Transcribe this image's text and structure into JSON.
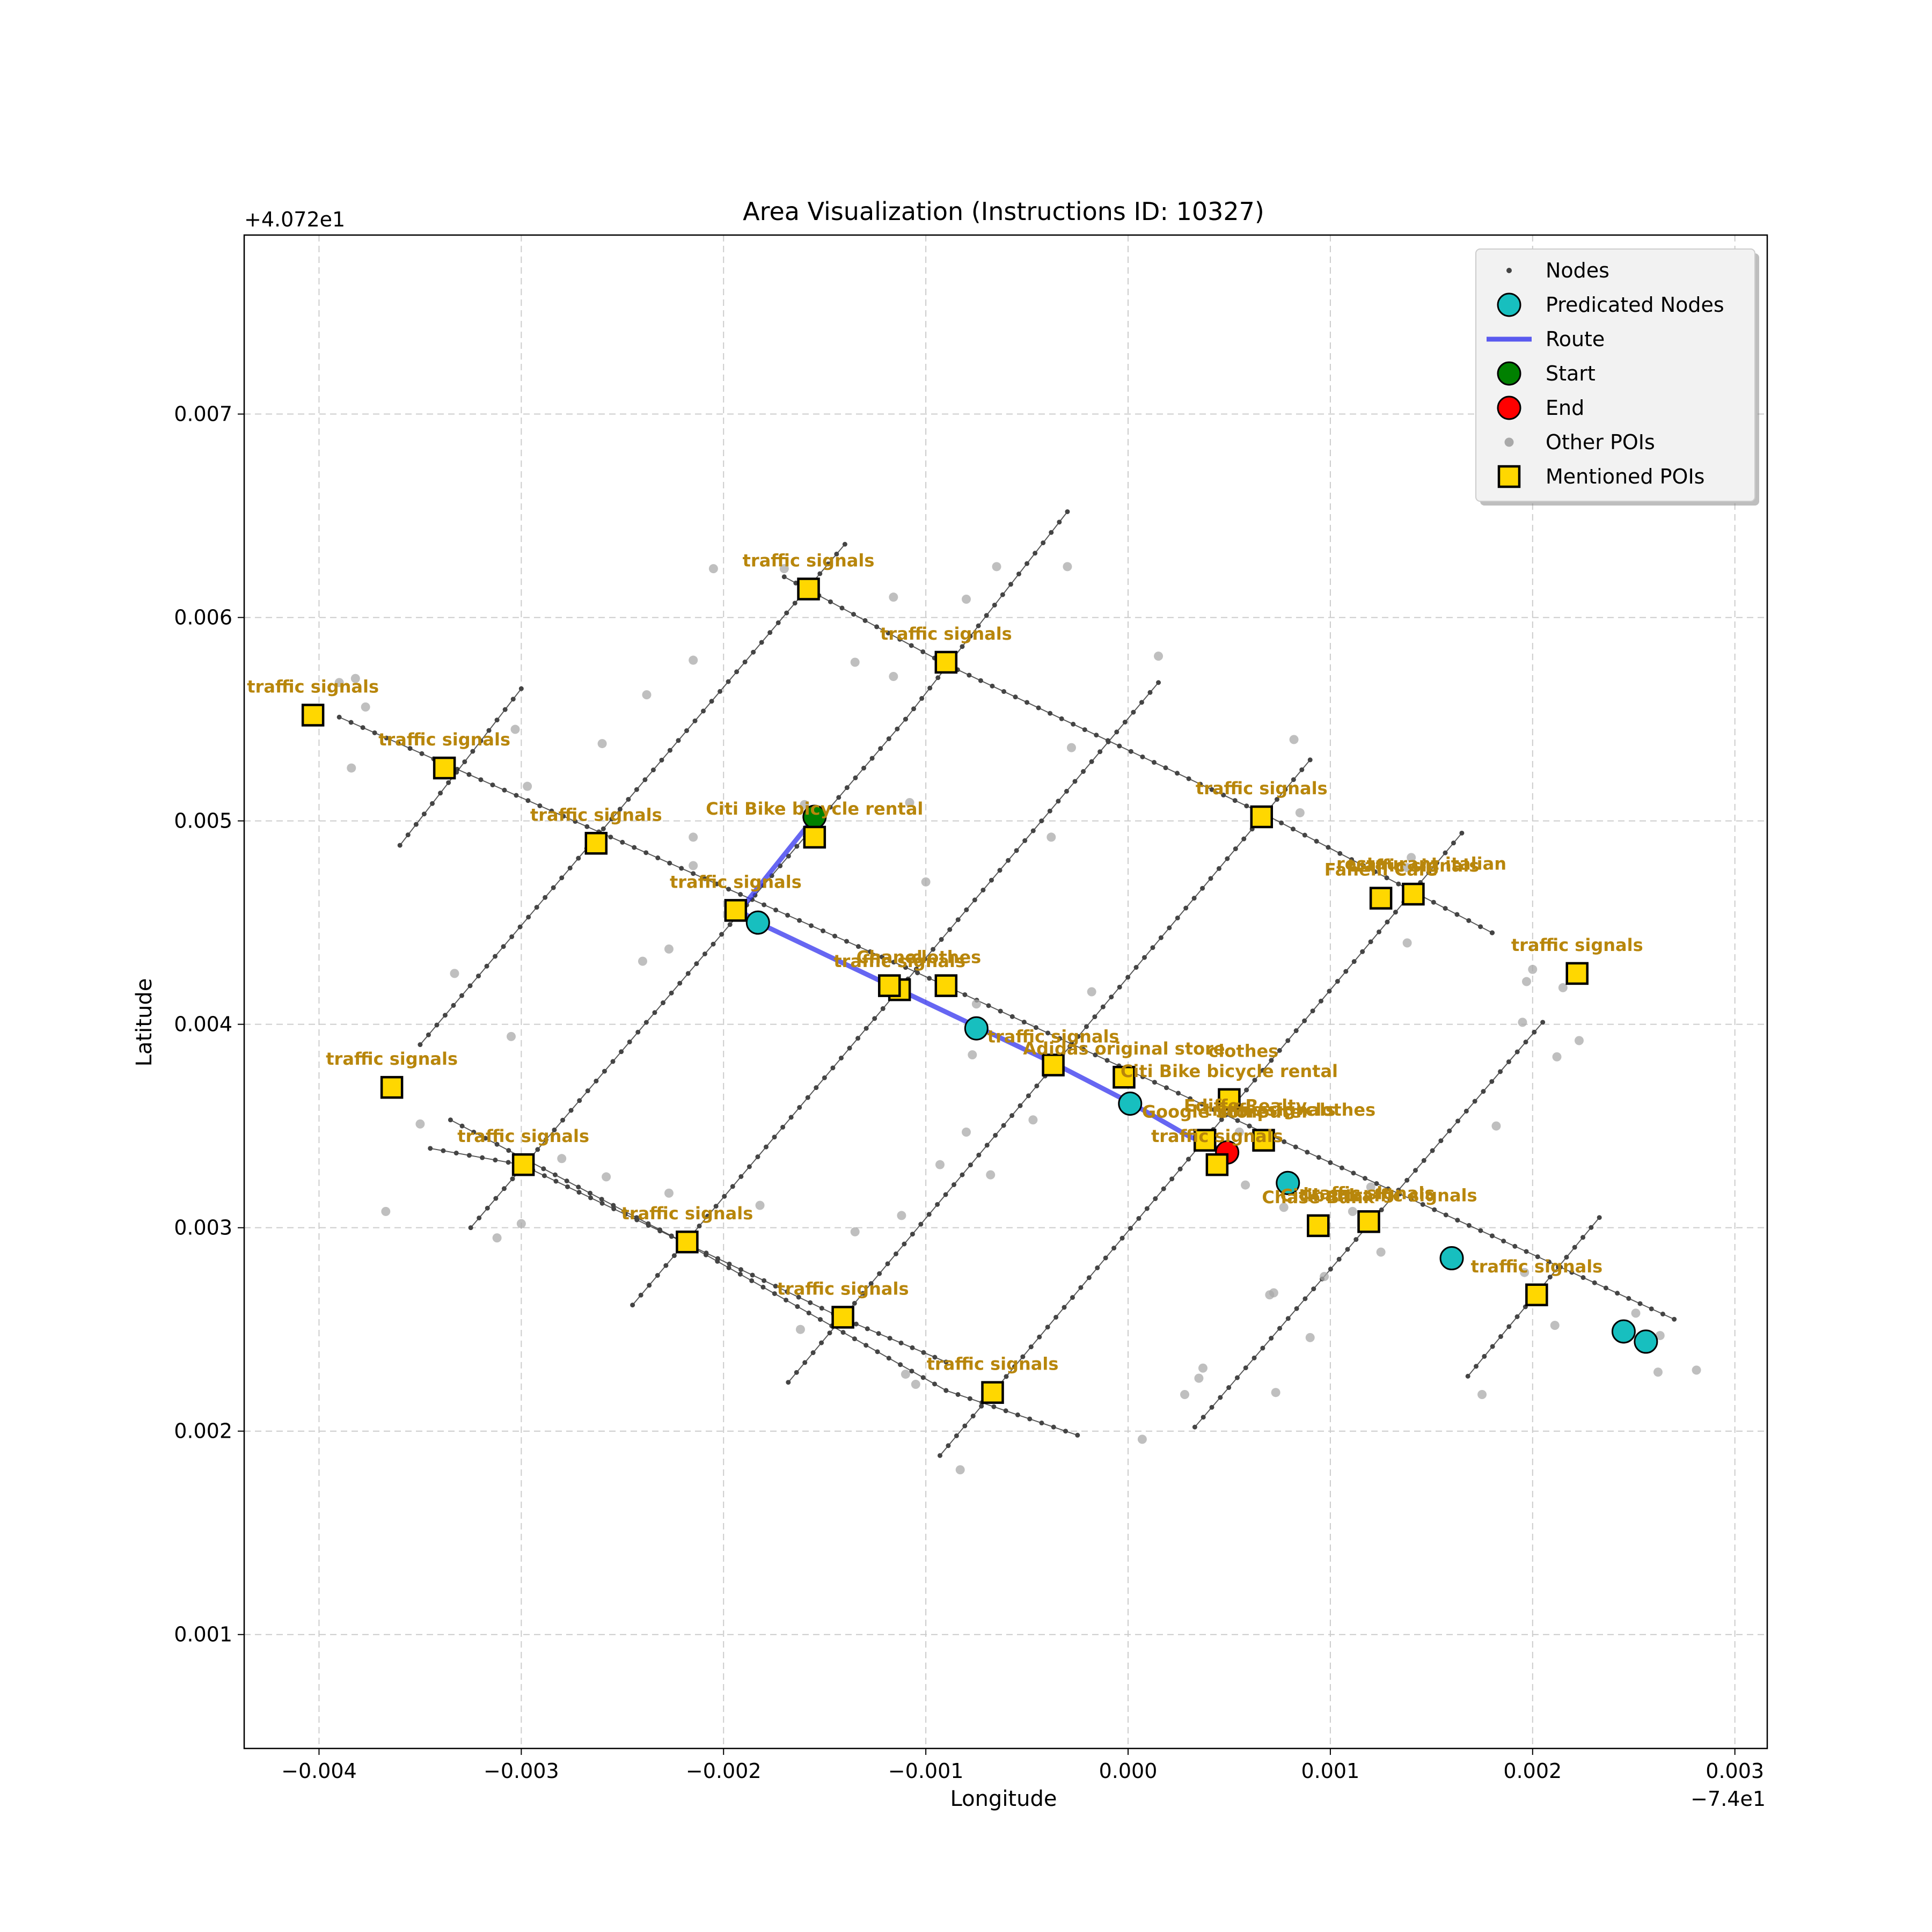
{
  "chart_data": {
    "type": "scatter",
    "title": "Area Visualization (Instructions ID: 10327)",
    "xlabel": "Longitude",
    "ylabel": "Latitude",
    "x_offset_label": "−7.4e1",
    "y_offset_label": "+4.072e1",
    "xlim": [
      -0.00437,
      0.00316
    ],
    "ylim": [
      0.00044,
      0.00788
    ],
    "x_ticks": [
      -0.004,
      -0.003,
      -0.002,
      -0.001,
      0.0,
      0.001,
      0.002,
      0.003
    ],
    "x_tick_labels": [
      "−0.004",
      "−0.003",
      "−0.002",
      "−0.001",
      "0.000",
      "0.001",
      "0.002",
      "0.003"
    ],
    "y_ticks": [
      0.001,
      0.002,
      0.003,
      0.004,
      0.005,
      0.006,
      0.007
    ],
    "y_tick_labels": [
      "0.001",
      "0.002",
      "0.003",
      "0.004",
      "0.005",
      "0.006",
      "0.007"
    ],
    "grid": true,
    "legend_position": "top-right",
    "colors": {
      "nodes": "#444444",
      "edges": "#222222",
      "predicated": "#17bfbf",
      "route": "#3333ee",
      "start": "#008000",
      "end": "#ff0000",
      "other_poi": "#a9a9a9",
      "mentioned_poi": "#ffd700",
      "poi_label": "#b8860b",
      "grid": "#cccccc"
    },
    "legend": [
      {
        "label": "Nodes",
        "marker": "small-dot"
      },
      {
        "label": "Predicated Nodes",
        "marker": "cyan-circle"
      },
      {
        "label": "Route",
        "marker": "blue-line"
      },
      {
        "label": "Start",
        "marker": "green-circle"
      },
      {
        "label": "End",
        "marker": "red-circle"
      },
      {
        "label": "Other POIs",
        "marker": "grey-dot"
      },
      {
        "label": "Mentioned POIs",
        "marker": "yellow-square"
      }
    ],
    "streets": [
      [
        [
          -0.0039,
          0.00551
        ],
        [
          -0.0011,
          0.00428
        ],
        [
          0.0006,
          0.0035
        ],
        [
          0.0018,
          0.00296
        ],
        [
          0.0027,
          0.00255
        ]
      ],
      [
        [
          -0.0017,
          0.0062
        ],
        [
          -0.0009,
          0.00577
        ],
        [
          0.0007,
          0.00502
        ],
        [
          0.0018,
          0.00445
        ],
        [
          0.0018,
          0.00445
        ]
      ],
      [
        [
          -0.00335,
          0.00353
        ],
        [
          -0.0022,
          0.00293
        ],
        [
          -0.0009,
          0.0022
        ],
        [
          -0.00025,
          0.00198
        ]
      ],
      [
        [
          -0.00345,
          0.00339
        ],
        [
          -0.003,
          0.00331
        ],
        [
          -0.0014,
          0.00255
        ],
        [
          -0.0009,
          0.00234
        ]
      ],
      [
        [
          -0.0036,
          0.00488
        ],
        [
          -0.003,
          0.00565
        ]
      ],
      [
        [
          -0.0035,
          0.0039
        ],
        [
          -0.0014,
          0.00636
        ]
      ],
      [
        [
          -0.00325,
          0.003
        ],
        [
          -0.0011,
          0.0055
        ],
        [
          -0.0003,
          0.00652
        ]
      ],
      [
        [
          -0.00245,
          0.00262
        ],
        [
          0.00015,
          0.00568
        ]
      ],
      [
        [
          -0.00168,
          0.00224
        ],
        [
          0.0009,
          0.0053
        ]
      ],
      [
        [
          -0.00093,
          0.00188
        ],
        [
          0.00165,
          0.00494
        ]
      ],
      [
        [
          0.00033,
          0.00202
        ],
        [
          0.00205,
          0.00401
        ]
      ],
      [
        [
          0.00168,
          0.00227
        ],
        [
          0.00233,
          0.00305
        ]
      ]
    ],
    "route": [
      [
        -0.00155,
        0.00502
      ],
      [
        -0.00192,
        0.00456
      ],
      [
        -0.00183,
        0.0045
      ],
      [
        -0.00073,
        0.00398
      ],
      [
        -0.00035,
        0.0038
      ],
      [
        2e-05,
        0.00361
      ],
      [
        0.0003,
        0.00345
      ],
      [
        0.00049,
        0.00337
      ]
    ],
    "start": [
      -0.00155,
      0.00502
    ],
    "end": [
      0.00049,
      0.00337
    ],
    "predicated_nodes": [
      [
        -0.00183,
        0.0045
      ],
      [
        -0.00075,
        0.00398
      ],
      [
        1e-05,
        0.00361
      ],
      [
        0.00079,
        0.00322
      ],
      [
        0.0016,
        0.00285
      ],
      [
        0.00245,
        0.00249
      ],
      [
        0.00256,
        0.00244
      ]
    ],
    "other_pois": [
      [
        -0.0039,
        0.00568
      ],
      [
        -0.00382,
        0.0057
      ],
      [
        -0.00377,
        0.00556
      ],
      [
        -0.00384,
        0.00526
      ],
      [
        -0.00303,
        0.00545
      ],
      [
        -0.00297,
        0.00517
      ],
      [
        -0.0026,
        0.00538
      ],
      [
        -0.00238,
        0.00562
      ],
      [
        -0.00215,
        0.00579
      ],
      [
        -0.00205,
        0.00624
      ],
      [
        -0.00215,
        0.00492
      ],
      [
        -0.00215,
        0.00478
      ],
      [
        -0.00227,
        0.00437
      ],
      [
        -0.0024,
        0.00431
      ],
      [
        -0.00333,
        0.00425
      ],
      [
        -0.00305,
        0.00394
      ],
      [
        -0.0035,
        0.00351
      ],
      [
        -0.0028,
        0.00334
      ],
      [
        -0.00258,
        0.00325
      ],
      [
        -0.003,
        0.00302
      ],
      [
        -0.00367,
        0.00308
      ],
      [
        -0.00312,
        0.00295
      ],
      [
        -0.00227,
        0.00317
      ],
      [
        -0.00182,
        0.00311
      ],
      [
        -0.0016,
        0.00508
      ],
      [
        -0.00135,
        0.00578
      ],
      [
        -0.0017,
        0.00624
      ],
      [
        -0.00116,
        0.0061
      ],
      [
        -0.00116,
        0.00571
      ],
      [
        -0.00108,
        0.00509
      ],
      [
        -0.001,
        0.0047
      ],
      [
        -0.0008,
        0.00609
      ],
      [
        -0.00065,
        0.00625
      ],
      [
        -0.0003,
        0.00625
      ],
      [
        -0.00028,
        0.00536
      ],
      [
        -0.00038,
        0.00492
      ],
      [
        -0.00018,
        0.00416
      ],
      [
        -0.00075,
        0.0041
      ],
      [
        -0.00077,
        0.00385
      ],
      [
        -0.00047,
        0.00353
      ],
      [
        -0.0008,
        0.00347
      ],
      [
        -0.00068,
        0.00326
      ],
      [
        -0.00093,
        0.00331
      ],
      [
        -0.00112,
        0.00306
      ],
      [
        -0.00135,
        0.00298
      ],
      [
        -0.00162,
        0.0025
      ],
      [
        -0.0011,
        0.00228
      ],
      [
        -0.00105,
        0.00223
      ],
      [
        -0.00083,
        0.00181
      ],
      [
        7e-05,
        0.00196
      ],
      [
        0.00015,
        0.00581
      ],
      [
        0.00082,
        0.0054
      ],
      [
        0.00085,
        0.00504
      ],
      [
        0.0014,
        0.00482
      ],
      [
        0.00138,
        0.00477
      ],
      [
        0.00138,
        0.0044
      ],
      [
        0.00055,
        0.00347
      ],
      [
        0.00045,
        0.0033
      ],
      [
        0.00058,
        0.00321
      ],
      [
        0.00077,
        0.0031
      ],
      [
        0.0012,
        0.0032
      ],
      [
        0.00111,
        0.00308
      ],
      [
        0.00125,
        0.00288
      ],
      [
        0.00097,
        0.00276
      ],
      [
        0.00072,
        0.00268
      ],
      [
        0.0007,
        0.00267
      ],
      [
        0.0009,
        0.00246
      ],
      [
        0.00037,
        0.00231
      ],
      [
        0.00035,
        0.00226
      ],
      [
        0.00028,
        0.00218
      ],
      [
        0.00073,
        0.00219
      ],
      [
        0.00182,
        0.0035
      ],
      [
        0.00195,
        0.00401
      ],
      [
        0.00197,
        0.00421
      ],
      [
        0.002,
        0.00427
      ],
      [
        0.00212,
        0.00384
      ],
      [
        0.00223,
        0.00392
      ],
      [
        0.00215,
        0.00418
      ],
      [
        0.00196,
        0.00278
      ],
      [
        0.00204,
        0.00266
      ],
      [
        0.00211,
        0.00252
      ],
      [
        0.00251,
        0.00258
      ],
      [
        0.00263,
        0.00247
      ],
      [
        0.00262,
        0.00229
      ],
      [
        0.00281,
        0.0023
      ],
      [
        0.00175,
        0.00218
      ]
    ],
    "mentioned_pois": [
      {
        "x": -0.00403,
        "y": 0.00552,
        "label": "traffic signals"
      },
      {
        "x": -0.00338,
        "y": 0.00526,
        "label": "traffic signals"
      },
      {
        "x": -0.00263,
        "y": 0.00489,
        "label": "traffic signals"
      },
      {
        "x": -0.00158,
        "y": 0.00614,
        "label": "traffic signals"
      },
      {
        "x": -0.0009,
        "y": 0.00578,
        "label": "traffic signals"
      },
      {
        "x": -0.00155,
        "y": 0.00492,
        "label": "Citi Bike bicycle rental"
      },
      {
        "x": -0.00194,
        "y": 0.00456,
        "label": "traffic signals"
      },
      {
        "x": -0.00113,
        "y": 0.00417,
        "label": "traffic signals"
      },
      {
        "x": -0.0009,
        "y": 0.00419,
        "label": "clothes"
      },
      {
        "x": -0.00118,
        "y": 0.00419,
        "label": "Chanel"
      },
      {
        "x": -0.00364,
        "y": 0.00369,
        "label": "traffic signals"
      },
      {
        "x": -0.00299,
        "y": 0.00331,
        "label": "traffic signals"
      },
      {
        "x": -0.00218,
        "y": 0.00293,
        "label": "traffic signals"
      },
      {
        "x": -0.00141,
        "y": 0.00256,
        "label": "traffic signals"
      },
      {
        "x": -0.00067,
        "y": 0.00219,
        "label": "traffic signals"
      },
      {
        "x": -0.00037,
        "y": 0.0038,
        "label": "traffic signals"
      },
      {
        "x": -2e-05,
        "y": 0.00374,
        "label": "Adidas original store"
      },
      {
        "x": 0.0005,
        "y": 0.00363,
        "label": "Citi Bike bicycle rental"
      },
      {
        "x": 0.00038,
        "y": 0.00343,
        "label": "Google Store"
      },
      {
        "x": 0.00044,
        "y": 0.00331,
        "label": "traffic signals"
      },
      {
        "x": 0.00067,
        "y": 0.00343,
        "label": "computer"
      },
      {
        "x": 0.00066,
        "y": 0.00502,
        "label": "traffic signals"
      },
      {
        "x": 0.00125,
        "y": 0.00462,
        "label": "Fanelli Cafe"
      },
      {
        "x": 0.00141,
        "y": 0.00464,
        "label": "traffic signals"
      },
      {
        "x": 0.00222,
        "y": 0.00425,
        "label": "traffic signals"
      },
      {
        "x": 0.00094,
        "y": 0.00301,
        "label": "Chase Bank"
      },
      {
        "x": 0.00119,
        "y": 0.00303,
        "label": "traffic signals"
      },
      {
        "x": 0.00202,
        "y": 0.00267,
        "label": "traffic signals"
      }
    ],
    "extra_labels": [
      {
        "x": 0.00057,
        "y": 0.00384,
        "text": "clothes"
      },
      {
        "x": 0.00105,
        "y": 0.00355,
        "text": "clothes"
      },
      {
        "x": 0.0007,
        "y": 0.00355,
        "text": "traffic signals"
      },
      {
        "x": 0.00058,
        "y": 0.00357,
        "text": "Ediffe Realty"
      },
      {
        "x": 0.00145,
        "y": 0.00476,
        "text": "restaurant italian"
      },
      {
        "x": 0.0014,
        "y": 0.00313,
        "text": "traffic signals"
      },
      {
        "x": 0.00095,
        "y": 0.00313,
        "text": "Citibank"
      }
    ]
  }
}
